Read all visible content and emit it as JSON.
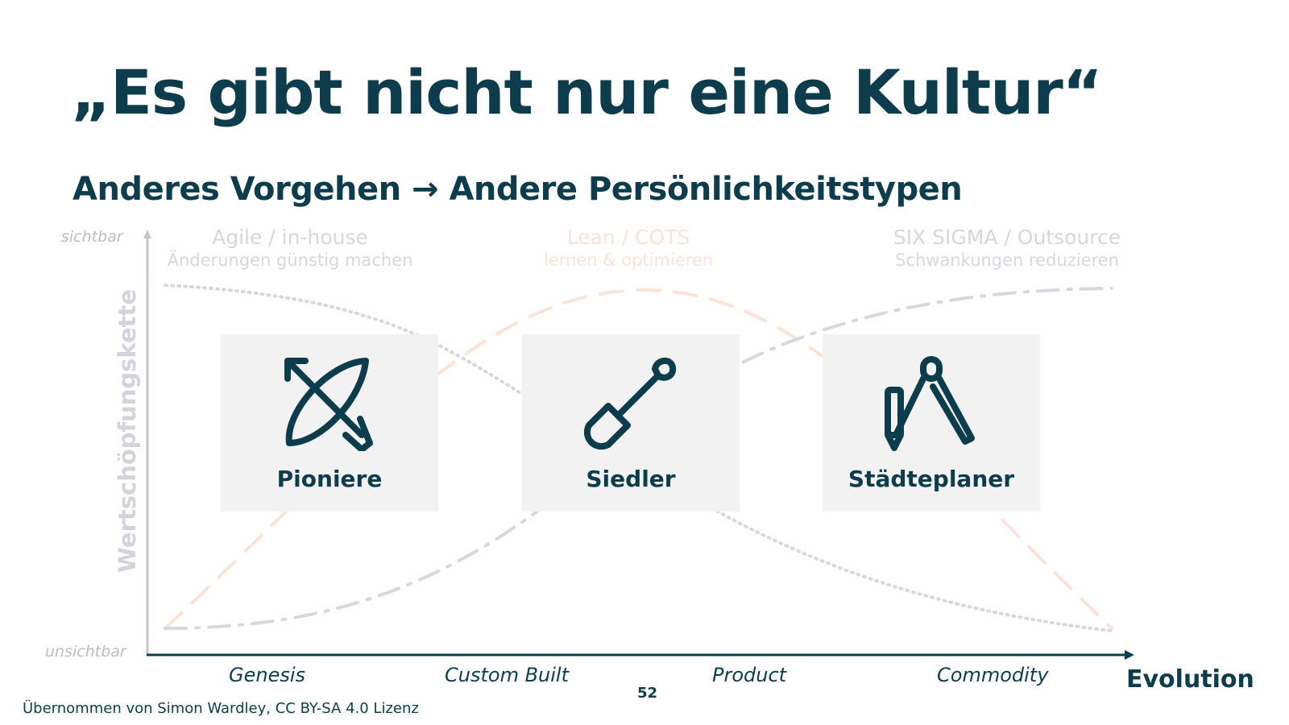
{
  "slide": {
    "title": "„Es gibt nicht nur eine Kultur“",
    "subtitle": "Anderes Vorgehen → Andere Persönlichkeitstypen",
    "page_number": "52",
    "footer": "Übernommen von Simon Wardley, CC BY-SA 4.0 Lizenz"
  },
  "diagram": {
    "y_axis": {
      "title": "Wertschöpfungskette",
      "top_label": "sichtbar",
      "bottom_label": "unsichtbar"
    },
    "x_axis": {
      "title": "Evolution",
      "categories": [
        "Genesis",
        "Custom Built",
        "Product",
        "Commodity"
      ]
    },
    "phases": [
      {
        "title": "Agile / in-house",
        "subtitle": "Änderungen günstig machen",
        "color": "#d6d8df",
        "curve": "dotted"
      },
      {
        "title": "Lean / COTS",
        "subtitle": "lernen & optimieren",
        "color": "#fbe3d8",
        "curve": "dashed"
      },
      {
        "title": "SIX SIGMA / Outsource",
        "subtitle": "Schwankungen reduzieren",
        "color": "#d6d8df",
        "curve": "dash-dot"
      }
    ],
    "cards": [
      {
        "label": "Pioniere",
        "icon": "bow-and-arrow-icon"
      },
      {
        "label": "Siedler",
        "icon": "shovel-icon"
      },
      {
        "label": "Städteplaner",
        "icon": "drafting-compass-pencil-icon"
      }
    ],
    "colors": {
      "primary": "#0d3d4c",
      "card_bg": "#f2f2f2",
      "axis": "#0d3d4c",
      "muted": "#d6d8df",
      "peach": "#fbe3d8"
    }
  }
}
